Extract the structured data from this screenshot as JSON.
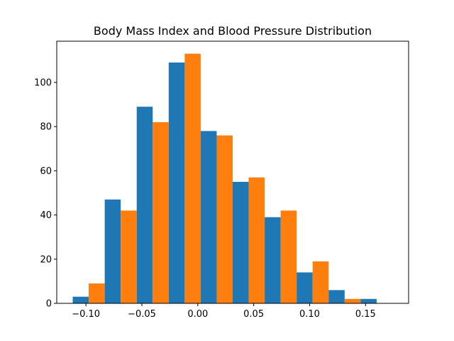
{
  "chart_data": {
    "type": "bar",
    "title": "Body Mass Index and Blood Pressure Distribution",
    "xlabel": "",
    "ylabel": "",
    "bins": [
      [
        -0.1118,
        -0.0832
      ],
      [
        -0.0832,
        -0.0546
      ],
      [
        -0.0546,
        -0.026
      ],
      [
        -0.026,
        0.0026
      ],
      [
        0.0026,
        0.0312
      ],
      [
        0.0312,
        0.0598
      ],
      [
        0.0598,
        0.0884
      ],
      [
        0.0884,
        0.117
      ],
      [
        0.117,
        0.1456
      ],
      [
        0.1456,
        0.1742
      ]
    ],
    "series": [
      {
        "values": [
          3,
          47,
          89,
          109,
          78,
          55,
          39,
          14,
          6,
          2
        ],
        "color": "#1f77b4"
      },
      {
        "values": [
          9,
          42,
          82,
          113,
          76,
          57,
          42,
          19,
          2,
          0
        ],
        "color": "#ff7f0e"
      }
    ],
    "xlim": [
      -0.1261,
      0.1885
    ],
    "ylim": [
      0,
      118.65
    ],
    "xticks": [
      {
        "value": -0.1,
        "label": "−0.10"
      },
      {
        "value": -0.05,
        "label": "−0.05"
      },
      {
        "value": 0.0,
        "label": "0.00"
      },
      {
        "value": 0.05,
        "label": "0.05"
      },
      {
        "value": 0.1,
        "label": "0.10"
      },
      {
        "value": 0.15,
        "label": "0.15"
      }
    ],
    "yticks": [
      {
        "value": 0,
        "label": "0"
      },
      {
        "value": 20,
        "label": "20"
      },
      {
        "value": 40,
        "label": "40"
      },
      {
        "value": 60,
        "label": "60"
      },
      {
        "value": 80,
        "label": "80"
      },
      {
        "value": 100,
        "label": "100"
      }
    ],
    "grid": false,
    "legend": "none"
  }
}
